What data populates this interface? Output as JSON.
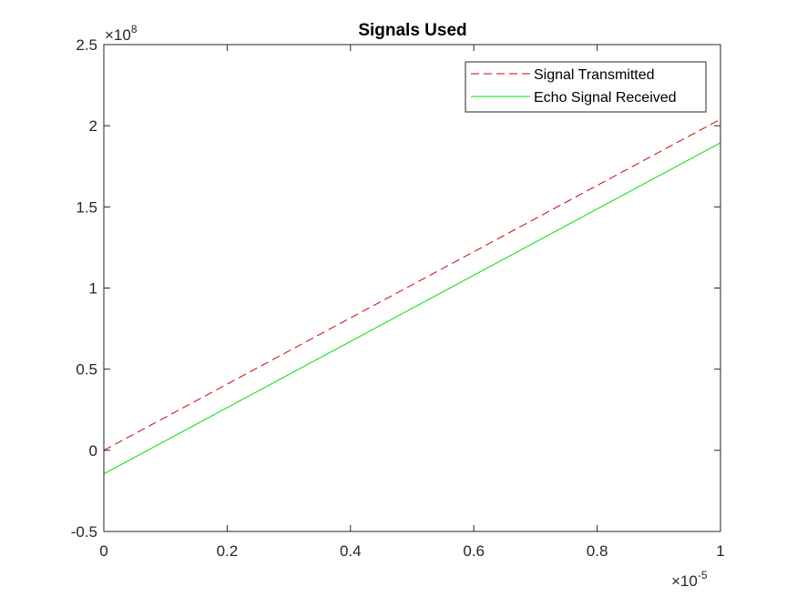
{
  "chart_data": {
    "type": "line",
    "title": "Signals Used",
    "xlabel": "",
    "ylabel": "",
    "xlim": [
      0,
      1e-05
    ],
    "ylim": [
      -50000000.0,
      250000000.0
    ],
    "x_ticks": [
      0,
      0.2,
      0.4,
      0.6,
      0.8,
      1
    ],
    "x_tick_labels": [
      "0",
      "0.2",
      "0.4",
      "0.6",
      "0.8",
      "1"
    ],
    "y_ticks": [
      -0.5,
      0,
      0.5,
      1,
      1.5,
      2,
      2.5
    ],
    "y_tick_labels": [
      "-0.5",
      "0",
      "0.5",
      "1",
      "1.5",
      "2",
      "2.5"
    ],
    "x_tick_scale": 1e-05,
    "y_tick_scale": 100000000.0,
    "x_exponent": {
      "base": "×10",
      "power": "-5"
    },
    "y_exponent": {
      "base": "×10",
      "power": "8"
    },
    "grid": false,
    "legend_position": "top-right",
    "series": [
      {
        "name": "Signal Transmitted",
        "color": "#d00000",
        "line_style": "dashed",
        "x": [
          0,
          1e-05
        ],
        "y": [
          0,
          204000000.0
        ]
      },
      {
        "name": "Echo Signal Received",
        "color": "#00e000",
        "line_style": "solid",
        "x": [
          0,
          1e-05
        ],
        "y": [
          -14500000.0,
          189500000.0
        ]
      }
    ]
  }
}
